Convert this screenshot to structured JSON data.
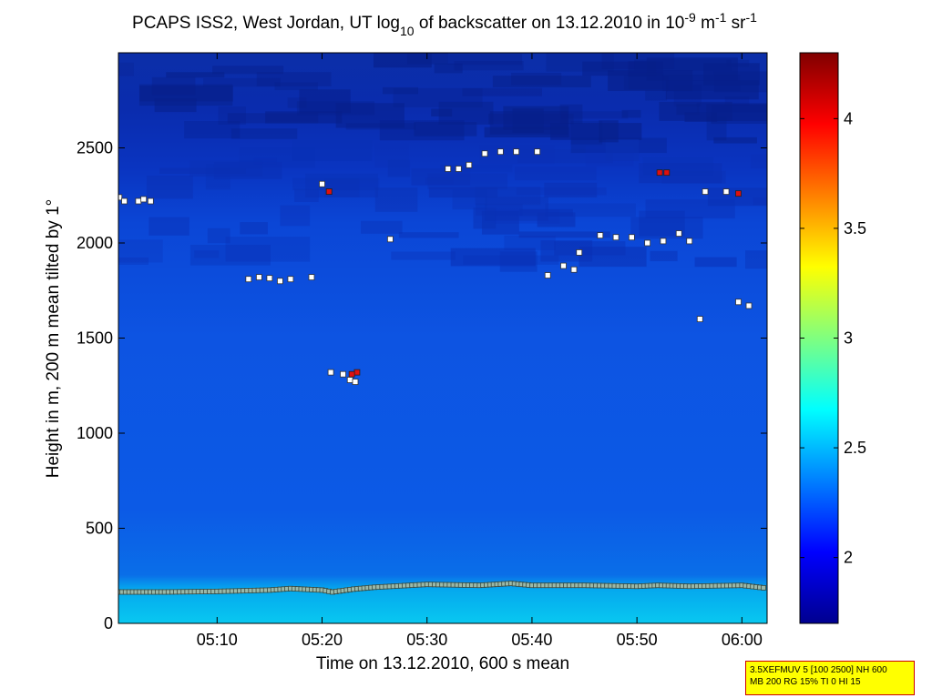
{
  "chart_data": {
    "type": "heatmap",
    "title": {
      "prefix": "PCAPS ISS2, West Jordan, UT log",
      "sub": "10",
      "middle": " of backscatter on 13.12.2010 in 10",
      "sup1": "-9",
      "middle2": " m",
      "sup2": "-1",
      "middle3": " sr",
      "sup3": "-1"
    },
    "xlabel": "Time on 13.12.2010, 600 s mean",
    "ylabel": "Height in m, 200 m mean tilted by 1°",
    "xlim": [
      "05:00:36",
      "06:02:24"
    ],
    "ylim": [
      0,
      3000
    ],
    "x_ticks": [
      "05:10",
      "05:20",
      "05:30",
      "05:40",
      "05:50",
      "06:00"
    ],
    "y_ticks": [
      "0",
      "500",
      "1000",
      "1500",
      "2000",
      "2500"
    ],
    "colorbar": {
      "range": [
        1.7,
        4.3
      ],
      "ticks": [
        "2",
        "2.5",
        "3",
        "3.5",
        "4"
      ],
      "colormap": "jet"
    },
    "background_field": {
      "description_levels": [
        {
          "height_range": [
            0,
            200
          ],
          "value": 2.55
        },
        {
          "height_range": [
            200,
            600
          ],
          "value": 2.3
        },
        {
          "height_range": [
            600,
            2000
          ],
          "value": 2.15
        },
        {
          "height_range": [
            2000,
            3000
          ],
          "value": 1.95
        }
      ]
    },
    "series": [
      {
        "marker": "square",
        "points": [
          {
            "t": "05:00:40",
            "h": 2240
          },
          {
            "t": "05:01:10",
            "h": 2220
          },
          {
            "t": "05:02:30",
            "h": 2220
          },
          {
            "t": "05:03:00",
            "h": 2230
          },
          {
            "t": "05:03:40",
            "h": 2220
          },
          {
            "t": "05:13:00",
            "h": 1810
          },
          {
            "t": "05:14:00",
            "h": 1820
          },
          {
            "t": "05:15:00",
            "h": 1815
          },
          {
            "t": "05:16:00",
            "h": 1800
          },
          {
            "t": "05:17:00",
            "h": 1810
          },
          {
            "t": "05:19:00",
            "h": 1820
          },
          {
            "t": "05:20:00",
            "h": 2310
          },
          {
            "t": "05:20:40",
            "h": 2270
          },
          {
            "t": "05:20:50",
            "h": 1320
          },
          {
            "t": "05:22:00",
            "h": 1310
          },
          {
            "t": "05:22:40",
            "h": 1280
          },
          {
            "t": "05:23:10",
            "h": 1270
          },
          {
            "t": "05:26:30",
            "h": 2020
          },
          {
            "t": "05:32:00",
            "h": 2390
          },
          {
            "t": "05:33:00",
            "h": 2390
          },
          {
            "t": "05:34:00",
            "h": 2410
          },
          {
            "t": "05:35:30",
            "h": 2470
          },
          {
            "t": "05:37:00",
            "h": 2480
          },
          {
            "t": "05:38:30",
            "h": 2480
          },
          {
            "t": "05:40:30",
            "h": 2480
          },
          {
            "t": "05:41:30",
            "h": 1830
          },
          {
            "t": "05:43:00",
            "h": 1880
          },
          {
            "t": "05:44:00",
            "h": 1860
          },
          {
            "t": "05:44:30",
            "h": 1950
          },
          {
            "t": "05:46:30",
            "h": 2040
          },
          {
            "t": "05:48:00",
            "h": 2030
          },
          {
            "t": "05:49:30",
            "h": 2030
          },
          {
            "t": "05:51:00",
            "h": 2000
          },
          {
            "t": "05:52:30",
            "h": 2010
          },
          {
            "t": "05:54:00",
            "h": 2050
          },
          {
            "t": "05:55:00",
            "h": 2010
          },
          {
            "t": "05:56:00",
            "h": 1600
          },
          {
            "t": "05:56:30",
            "h": 2270
          },
          {
            "t": "05:58:30",
            "h": 2270
          },
          {
            "t": "05:59:40",
            "h": 1690
          },
          {
            "t": "06:00:40",
            "h": 1670
          }
        ]
      },
      {
        "marker": "square",
        "points": [
          {
            "t": "05:20:40",
            "h": 2270
          },
          {
            "t": "05:23:20",
            "h": 1320
          },
          {
            "t": "05:22:50",
            "h": 1310
          },
          {
            "t": "05:52:10",
            "h": 2370
          },
          {
            "t": "05:52:50",
            "h": 2370
          },
          {
            "t": "05:59:40",
            "h": 2260
          }
        ]
      },
      {
        "marker": "square",
        "points": [
          {
            "t": "05:00:36",
            "h": 165
          },
          {
            "t": "05:05:00",
            "h": 165
          },
          {
            "t": "05:10:00",
            "h": 168
          },
          {
            "t": "05:15:00",
            "h": 175
          },
          {
            "t": "05:17:00",
            "h": 183
          },
          {
            "t": "05:20:00",
            "h": 175
          },
          {
            "t": "05:21:00",
            "h": 165
          },
          {
            "t": "05:23:00",
            "h": 180
          },
          {
            "t": "05:25:00",
            "h": 190
          },
          {
            "t": "05:30:00",
            "h": 205
          },
          {
            "t": "05:35:00",
            "h": 200
          },
          {
            "t": "05:38:00",
            "h": 210
          },
          {
            "t": "05:40:00",
            "h": 200
          },
          {
            "t": "05:45:00",
            "h": 200
          },
          {
            "t": "05:50:00",
            "h": 195
          },
          {
            "t": "05:52:00",
            "h": 200
          },
          {
            "t": "05:55:00",
            "h": 195
          },
          {
            "t": "06:00:00",
            "h": 200
          },
          {
            "t": "06:02:24",
            "h": 185
          }
        ]
      }
    ]
  },
  "info_box": {
    "line1": "3.5XEFMUV 5 [100 2500] NH 600",
    "line2": "MB 200 RG 15% TI 0 HI 15"
  }
}
